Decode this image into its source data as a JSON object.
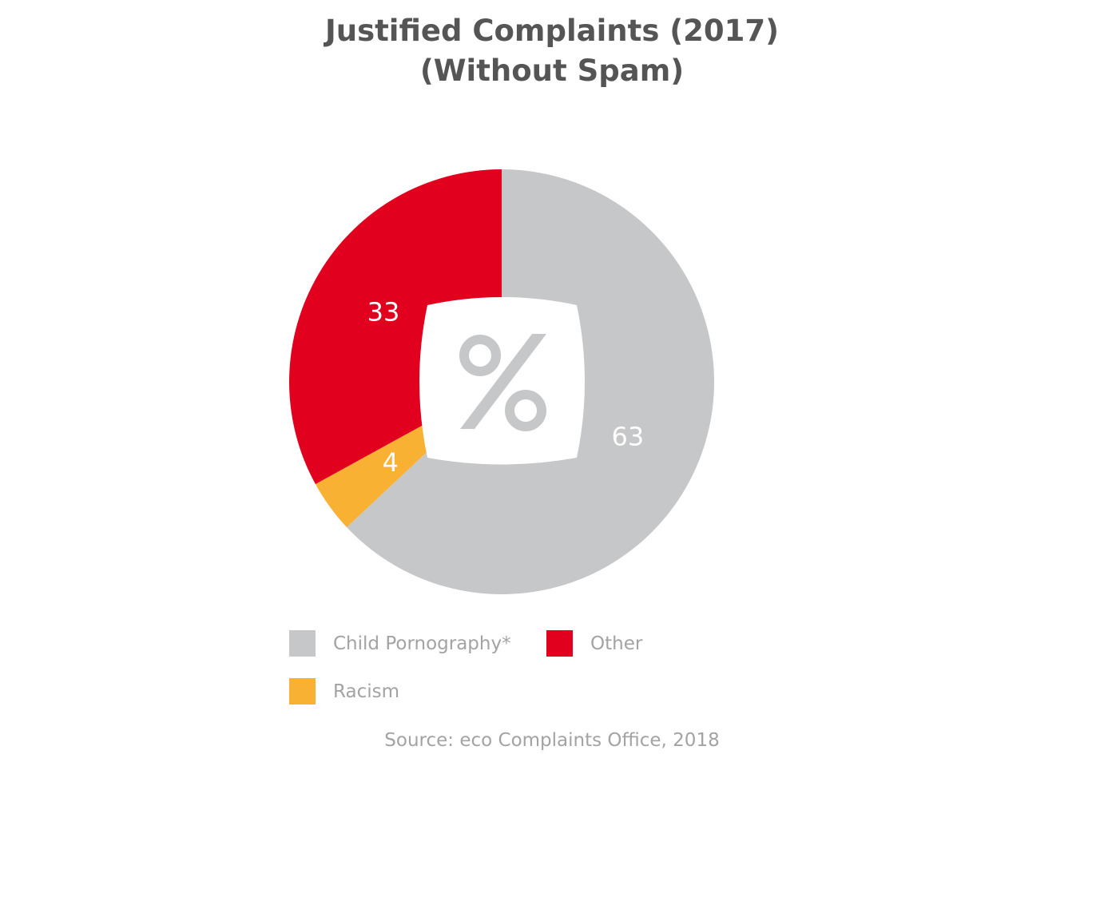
{
  "chart_data": {
    "type": "pie",
    "title": [
      "Justified Complaints (2017)",
      "(Without Spam)"
    ],
    "unit": "%",
    "center_icon": "percent-icon",
    "slices": [
      {
        "name": "Child Pornography*",
        "value": 63,
        "label": "63",
        "color": "#c6c7c8"
      },
      {
        "name": "Racism",
        "value": 4,
        "label": "4",
        "color": "#f8b133"
      },
      {
        "name": "Other",
        "value": 33,
        "label": "33",
        "color": "#e2001f"
      }
    ],
    "legend": [
      {
        "name": "Child Pornography*",
        "color": "#c6c7c8"
      },
      {
        "name": "Other",
        "color": "#e2001f"
      },
      {
        "name": "Racism",
        "color": "#f8b133"
      }
    ],
    "source": "Source: eco Complaints Office, 2018"
  }
}
